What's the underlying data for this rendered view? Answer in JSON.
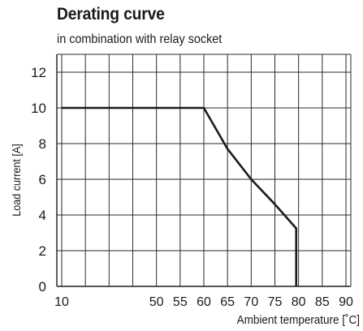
{
  "chart_data": {
    "type": "line",
    "title": "Derating curve",
    "subtitle": "in combination with relay socket",
    "xlabel": "Ambient temperature [˚C]",
    "ylabel": "Load current [A]",
    "x_ticks": [
      "10",
      "50",
      "55",
      "60",
      "65",
      "70",
      "75",
      "80",
      "85",
      "90"
    ],
    "y_ticks": [
      "0",
      "2",
      "4",
      "6",
      "8",
      "10",
      "12"
    ],
    "ylim": [
      0,
      13
    ],
    "x_grid_values": [
      10,
      20,
      30,
      40,
      50,
      55,
      60,
      65,
      70,
      75,
      80,
      85,
      90
    ],
    "grid": true,
    "series": [
      {
        "points": [
          {
            "x": 10,
            "y": 10
          },
          {
            "x": 60,
            "y": 10
          },
          {
            "x": 65,
            "y": 7.7
          },
          {
            "x": 70,
            "y": 6.0
          },
          {
            "x": 75,
            "y": 4.6
          },
          {
            "x": 79.5,
            "y": 3.25
          },
          {
            "x": 79.5,
            "y": 0
          }
        ],
        "color": "#1a1a1a"
      }
    ]
  }
}
